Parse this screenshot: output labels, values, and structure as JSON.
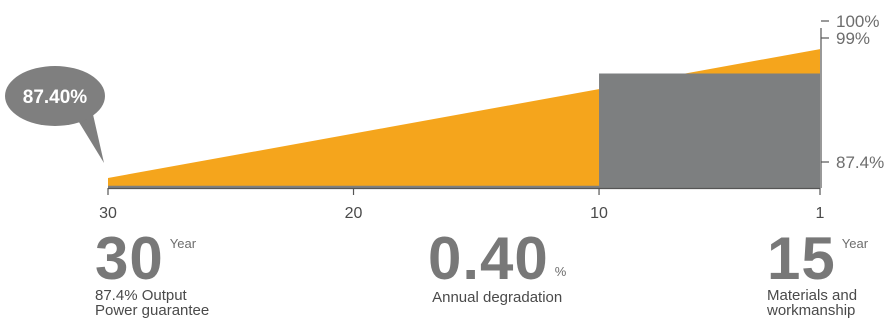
{
  "chart_data": {
    "type": "area",
    "x_ticks": [
      "30",
      "20",
      "10",
      "1"
    ],
    "x_range": [
      30,
      1
    ],
    "ylim": [
      86.5,
      100
    ],
    "y_labels": [
      "100%",
      "99%",
      "87.4%"
    ],
    "series": [
      {
        "x": [
          30,
          1
        ],
        "values": [
          87.4,
          99.0
        ]
      },
      {
        "x": [
          30,
          10,
          10,
          1
        ],
        "values": [
          86.7,
          86.7,
          96.8,
          96.8
        ]
      }
    ],
    "callout": "87.40%",
    "colors": {
      "linear": "#f5a51c",
      "step": "#7d7f80",
      "bubble": "#7f7f7f",
      "axis": "#555555"
    }
  },
  "stats": [
    {
      "value": "30",
      "unit": "Year",
      "desc_line1": "87.4% Output",
      "desc_line2": "Power guarantee"
    },
    {
      "value": "0.40",
      "unit": "%",
      "desc_line1": "Annual degradation",
      "desc_line2": ""
    },
    {
      "value": "15",
      "unit": "Year",
      "desc_line1": "Materials and",
      "desc_line2": "workmanship"
    }
  ]
}
